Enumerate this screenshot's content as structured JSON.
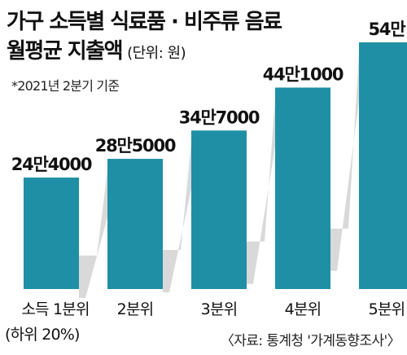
{
  "header": {
    "title_line1": "가구 소득별 식료품 · 비주류 음료",
    "title_line2": "월평균 지출액",
    "unit": "(단위: 원)"
  },
  "note": "*2021년 2분기 기준",
  "source": "〈자료: 통계청 '가계동향조사'〉",
  "colors": {
    "bar": "#1f8fa6",
    "shadow": "#d9d9d9"
  },
  "chart_data": {
    "type": "bar",
    "categories": [
      "소득 1분위",
      "2분위",
      "3분위",
      "4분위",
      "5분위"
    ],
    "category_sublabels": [
      "(하위 20%)",
      "",
      "",
      "",
      ""
    ],
    "values": [
      244000,
      285000,
      347000,
      441000,
      540000
    ],
    "value_labels": [
      "24만4000",
      "28만5000",
      "34만7000",
      "44만1000",
      "54만"
    ],
    "ylim": [
      0,
      540000
    ],
    "xlabel": "",
    "ylabel": "",
    "grid": false,
    "legend": "none"
  }
}
